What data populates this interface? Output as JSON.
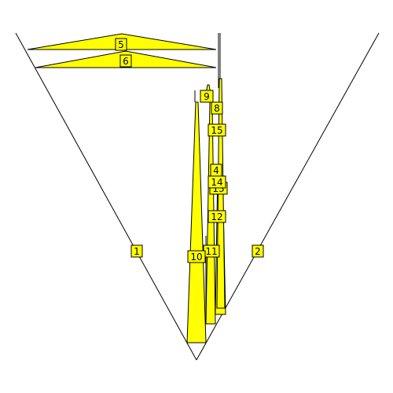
{
  "colors": {
    "fill": "#ffff00",
    "stroke": "#000000",
    "background": "#ffffff"
  },
  "labels": {
    "l1": "1",
    "l2": "2",
    "l4": "4",
    "l5": "5",
    "l6": "6",
    "l8": "8",
    "l9": "9",
    "l10": "10",
    "l11": "11",
    "l12": "12",
    "l13": "13",
    "l14": "14",
    "l15": "15"
  }
}
